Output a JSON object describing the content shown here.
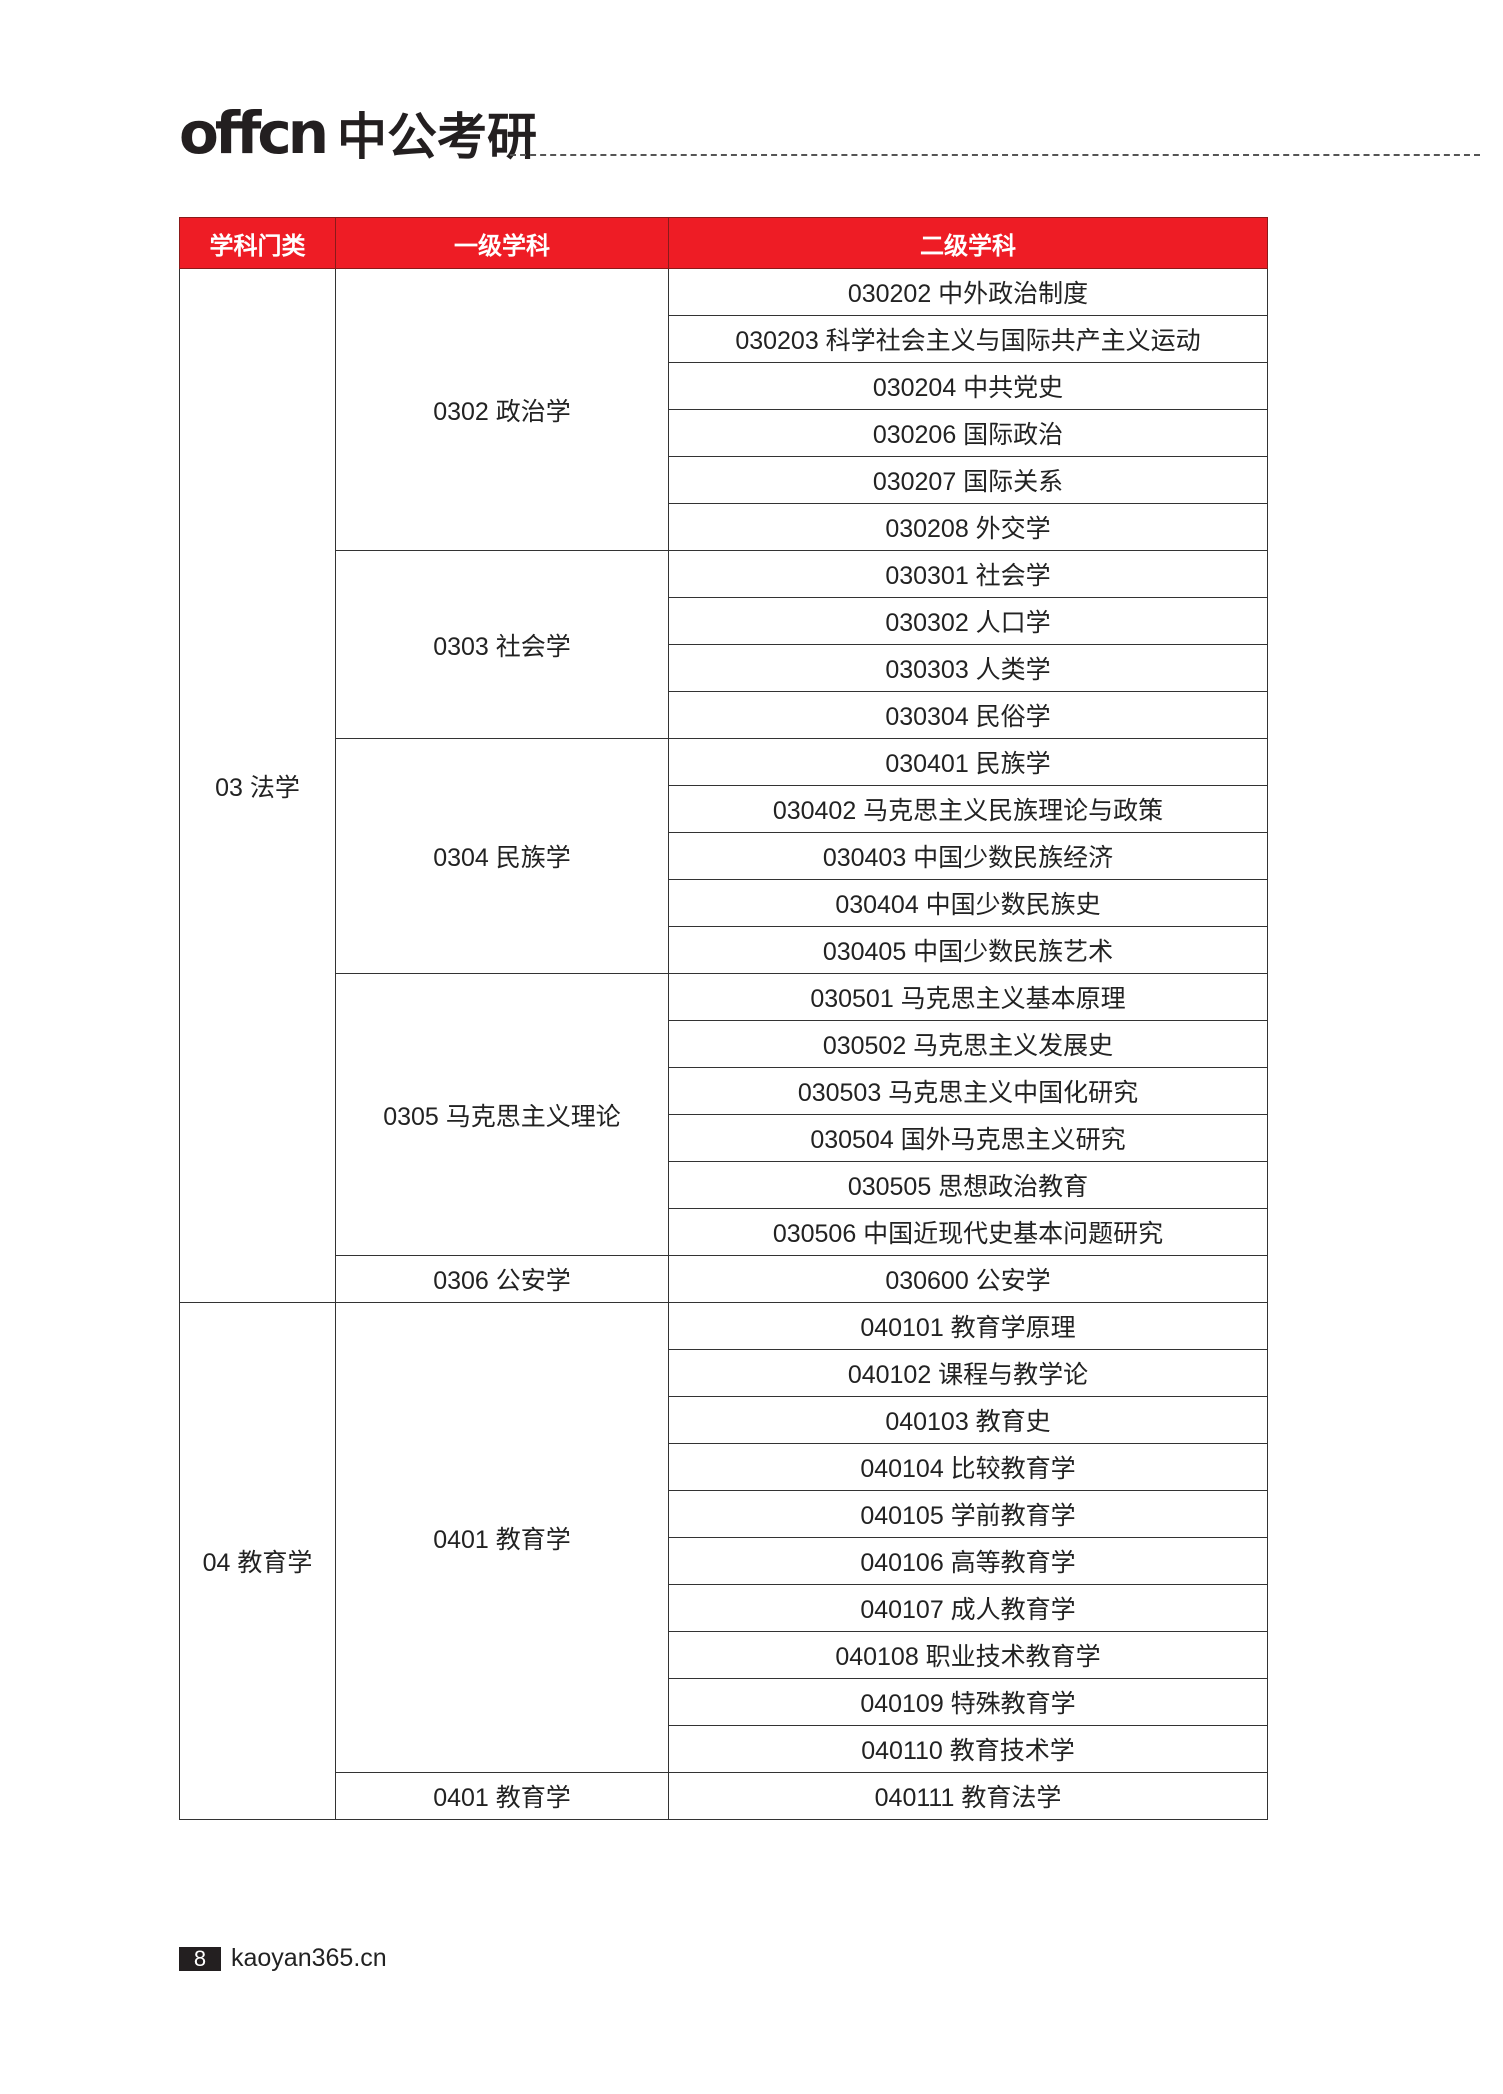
{
  "logo": {
    "en": "offcn",
    "cn": "中公考研"
  },
  "colors": {
    "header_bg": "#ee1c25",
    "header_text": "#ffffff"
  },
  "table": {
    "headers": [
      "学科门类",
      "一级学科",
      "二级学科"
    ],
    "categories": [
      {
        "name": "03 法学",
        "disciplines": [
          {
            "name": "0302 政治学",
            "subs": [
              "030202 中外政治制度",
              "030203 科学社会主义与国际共产主义运动",
              "030204 中共党史",
              "030206 国际政治",
              "030207 国际关系",
              "030208 外交学"
            ]
          },
          {
            "name": "0303 社会学",
            "subs": [
              "030301 社会学",
              "030302 人口学",
              "030303 人类学",
              "030304 民俗学"
            ]
          },
          {
            "name": "0304 民族学",
            "subs": [
              "030401 民族学",
              "030402 马克思主义民族理论与政策",
              "030403 中国少数民族经济",
              "030404 中国少数民族史",
              "030405 中国少数民族艺术"
            ]
          },
          {
            "name": "0305 马克思主义理论",
            "subs": [
              "030501 马克思主义基本原理",
              "030502 马克思主义发展史",
              "030503 马克思主义中国化研究",
              "030504 国外马克思主义研究",
              "030505 思想政治教育",
              "030506 中国近现代史基本问题研究"
            ]
          },
          {
            "name": "0306 公安学",
            "subs": [
              "030600 公安学"
            ]
          }
        ]
      },
      {
        "name": "04 教育学",
        "disciplines": [
          {
            "name": "0401 教育学",
            "subs": [
              "040101 教育学原理",
              "040102 课程与教学论",
              "040103 教育史",
              "040104 比较教育学",
              "040105 学前教育学",
              "040106 高等教育学",
              "040107 成人教育学",
              "040108 职业技术教育学",
              "040109 特殊教育学",
              "040110 教育技术学"
            ]
          },
          {
            "name": "0401 教育学",
            "subs": [
              "040111 教育法学"
            ]
          }
        ]
      }
    ]
  },
  "footer": {
    "page_number": "8",
    "site": "kaoyan365.cn"
  }
}
